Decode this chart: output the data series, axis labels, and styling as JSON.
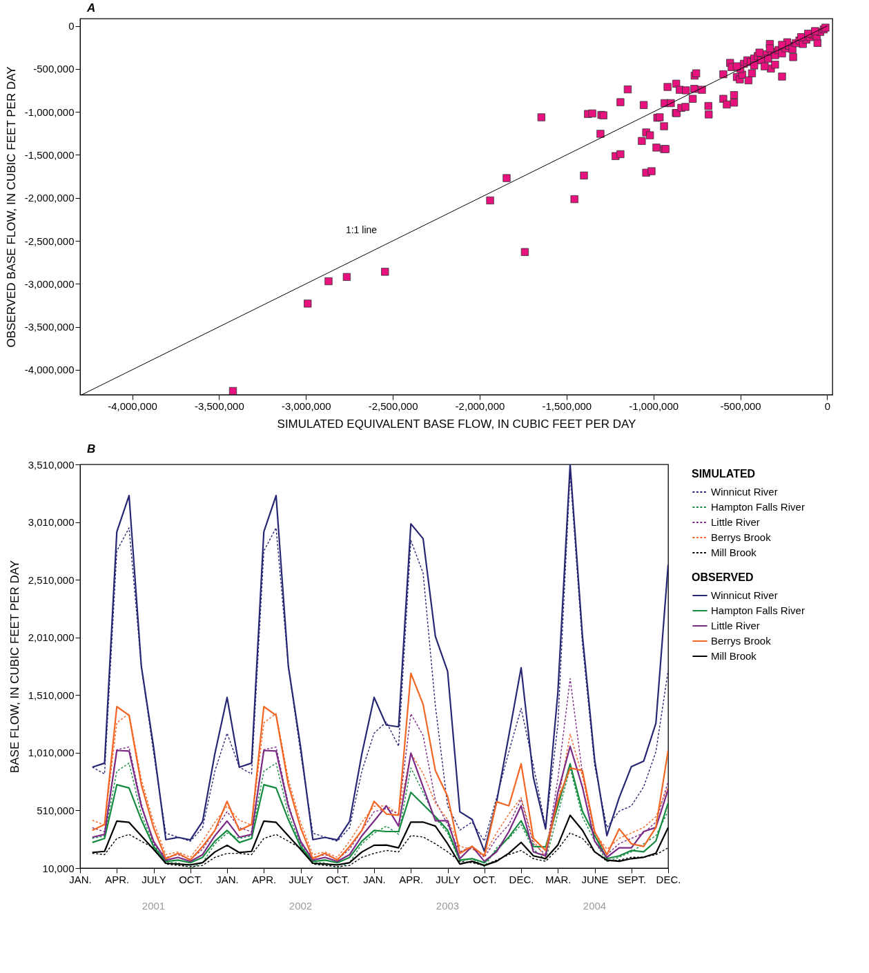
{
  "chart_data": [
    {
      "type": "scatter",
      "title": "A",
      "xlabel": "SIMULATED EQUIVALENT BASE FLOW, IN CUBIC FEET PER DAY",
      "ylabel": "OBSERVED BASE FLOW, IN CUBIC FEET PER DAY",
      "marker": "square",
      "xlim": [
        -4300000,
        30000
      ],
      "xticks": [
        {
          "value": -4000000,
          "label": "-4,000,000"
        },
        {
          "value": -3500000,
          "label": "-3,500,000"
        },
        {
          "value": -3000000,
          "label": "-3,000,000"
        },
        {
          "value": -2500000,
          "label": "-2,500,000"
        },
        {
          "value": -2000000,
          "label": "-2,000,000"
        },
        {
          "value": -1500000,
          "label": "-1,500,000"
        },
        {
          "value": -1000000,
          "label": "-1,000,000"
        },
        {
          "value": -500000,
          "label": "-500,000"
        },
        0
      ],
      "ylim": [
        -4290000,
        85000
      ],
      "yticks": [
        {
          "value": -4000000,
          "label": "-4,000,000"
        },
        {
          "value": -3500000,
          "label": "-3,500,000"
        },
        {
          "value": -3000000,
          "label": "-3,000,000"
        },
        {
          "value": -2500000,
          "label": "-2,500,000"
        },
        {
          "value": -2000000,
          "label": "-2,000,000"
        },
        {
          "value": -1500000,
          "label": "-1,500,000"
        },
        {
          "value": -1000000,
          "label": "-1,000,000"
        },
        {
          "value": -500000,
          "label": "-500,000"
        },
        0
      ],
      "annotations": [
        {
          "text": "1:1 line",
          "x": -2520000,
          "y": -2480000
        }
      ],
      "series": [
        {
          "color": "#e8127f",
          "x": [
            -3420000,
            -2990000,
            -2870000,
            -2765000,
            -2545000,
            -1940000,
            -1845000,
            -1740000,
            -1645000,
            -1455000,
            -1400000,
            -1377000,
            -1352000,
            -1305000,
            -1300000,
            -1288000,
            -1218000,
            -1190000,
            -1190000,
            -1148000,
            -1067000,
            -1056000,
            -1042000,
            -1042000,
            -1020000,
            -1011000,
            -983000,
            -978000,
            -964000,
            -939000,
            -936000,
            -900000,
            -939000,
            -930000,
            -919000,
            -871000,
            -866000,
            -869000,
            -849000,
            -840000,
            -816000,
            -813000,
            -774000,
            -765000,
            -763000,
            -754000,
            -721000,
            -684000,
            -682000,
            -598000,
            -598000,
            -578000,
            -559000,
            -550000,
            -536000,
            -536000,
            -520000,
            -503000,
            -489000,
            -453000,
            -433000,
            -260000,
            -324000,
            -330000,
            -196000,
            -56000,
            -480000,
            -460000,
            -440000,
            -420000,
            -400000,
            -380000,
            -360000,
            -340000,
            -320000,
            -300000,
            -280000,
            -260000,
            -240000,
            -220000,
            -200000,
            -180000,
            -160000,
            -140000,
            -120000,
            -100000,
            -80000,
            -60000,
            -40000,
            -20000,
            -10000,
            -300000,
            -360000,
            -420000,
            -500000,
            -520000,
            -230000,
            -150000,
            -110000,
            -70000,
            -260000,
            -330000,
            -390000
          ],
          "values": [
            -4246000,
            -3230000,
            -2970000,
            -2920000,
            -2860000,
            -2030000,
            -1770000,
            -2630000,
            -1063000,
            -2015000,
            -1740000,
            -1024000,
            -1018000,
            -1255000,
            -1035000,
            -1040000,
            -1514000,
            -1492000,
            -887000,
            -738000,
            -1338000,
            -920000,
            -1239000,
            -1707000,
            -1272000,
            -1690000,
            -1415000,
            -1068000,
            -1063000,
            -1167000,
            -898000,
            -898000,
            -1432000,
            -1432000,
            -710000,
            -1013000,
            -1013000,
            -672000,
            -743000,
            -953000,
            -942000,
            -749000,
            -848000,
            -732000,
            -578000,
            -551000,
            -743000,
            -931000,
            -1030000,
            -562000,
            -848000,
            -914000,
            -430000,
            -479000,
            -804000,
            -892000,
            -595000,
            -622000,
            -567000,
            -633000,
            -551000,
            -589000,
            -496000,
            -209000,
            -363000,
            -198000,
            -440000,
            -400000,
            -420000,
            -380000,
            -350000,
            -400000,
            -330000,
            -380000,
            -300000,
            -340000,
            -280000,
            -320000,
            -260000,
            -230000,
            -270000,
            -200000,
            -170000,
            -210000,
            -160000,
            -130000,
            -100000,
            -120000,
            -70000,
            -40000,
            -20000,
            -450000,
            -470000,
            -460000,
            -500000,
            -470000,
            -190000,
            -130000,
            -90000,
            -60000,
            -220000,
            -260000,
            -310000
          ]
        },
        {
          "type": "line",
          "marker": "none",
          "color": "#000000",
          "x": [
            -4290000,
            0
          ],
          "values": [
            -4290000,
            0
          ]
        }
      ]
    },
    {
      "type": "line",
      "title": "B",
      "ylabel": "BASE FLOW, IN CUBIC FEET PER DAY",
      "legend": "right",
      "categories": [
        "JAN.",
        null,
        null,
        "APR.",
        null,
        null,
        "JULY",
        null,
        null,
        "OCT.",
        null,
        null,
        "JAN.",
        null,
        null,
        "APR.",
        null,
        null,
        "JULY",
        null,
        null,
        "OCT.",
        null,
        null,
        "JAN.",
        null,
        null,
        "APR.",
        null,
        null,
        "JULY",
        null,
        null,
        "OCT.",
        null,
        null,
        "DEC.",
        null,
        null,
        "MAR.",
        null,
        null,
        "JUNE",
        null,
        null,
        "SEPT.",
        null,
        null,
        "DEC."
      ],
      "ylim": [
        10000,
        3510000
      ],
      "yticks": [
        {
          "value": 10000,
          "label": "10,000"
        },
        {
          "value": 510000,
          "label": "510,000"
        },
        {
          "value": 1010000,
          "label": "1,010,000"
        },
        {
          "value": 1510000,
          "label": "1,510,000"
        },
        {
          "value": 2010000,
          "label": "2,010,000"
        },
        {
          "value": 2510000,
          "label": "2,510,000"
        },
        {
          "value": 3010000,
          "label": "3,010,000"
        },
        {
          "value": 3510000,
          "label": "3,510,000"
        }
      ],
      "annotations": [
        "SIMULATED",
        "OBSERVED",
        "2001",
        "2002",
        "2003",
        "2004"
      ],
      "series": [
        {
          "name": "Winnicut River",
          "color": "#262673",
          "line_style": "dashed",
          "values": [
            null,
            885000,
            827000,
            2760000,
            2960000,
            1760000,
            1010000,
            313000,
            278000,
            243000,
            360000,
            850000,
            1180000,
            885000,
            827000,
            2760000,
            2960000,
            1760000,
            1010000,
            313000,
            278000,
            243000,
            360000,
            850000,
            1180000,
            1277000,
            1066000,
            2850000,
            2568000,
            1418000,
            550000,
            339000,
            409000,
            245000,
            620000,
            1019000,
            1395000,
            902000,
            362000,
            1254000,
            3437000,
            1958000,
            902000,
            362000,
            503000,
            550000,
            714000,
            1019000,
            1723000
          ]
        },
        {
          "name": "Hampton Falls River",
          "color": "#138a3e",
          "line_style": "dashed",
          "values": [
            null,
            267000,
            290000,
            850000,
            920000,
            477000,
            220000,
            57000,
            57000,
            10000,
            57000,
            220000,
            313000,
            267000,
            290000,
            850000,
            920000,
            477000,
            220000,
            57000,
            57000,
            10000,
            57000,
            220000,
            313000,
            374000,
            303000,
            878000,
            667000,
            444000,
            315000,
            69000,
            92000,
            22000,
            186000,
            268000,
            386000,
            174000,
            80000,
            479000,
            878000,
            456000,
            245000,
            69000,
            104000,
            151000,
            221000,
            292000,
            503000
          ]
        },
        {
          "name": "Little River",
          "color": "#7a2a85",
          "line_style": "dashed",
          "values": [
            null,
            360000,
            325000,
            1036000,
            1060000,
            570000,
            220000,
            103000,
            127000,
            85000,
            173000,
            337000,
            500000,
            360000,
            325000,
            1036000,
            1060000,
            570000,
            220000,
            103000,
            127000,
            85000,
            173000,
            337000,
            500000,
            526000,
            479000,
            1348000,
            1160000,
            597000,
            386000,
            151000,
            198000,
            104000,
            268000,
            386000,
            608000,
            221000,
            127000,
            784000,
            1653000,
            831000,
            292000,
            127000,
            221000,
            268000,
            315000,
            409000,
            761000
          ]
        },
        {
          "name": "Berrys Brook",
          "color": "#f26522",
          "line_style": "dashed",
          "values": [
            null,
            425000,
            383000,
            1270000,
            1350000,
            780000,
            407000,
            127000,
            150000,
            103000,
            243000,
            407000,
            547000,
            425000,
            383000,
            1270000,
            1350000,
            780000,
            407000,
            127000,
            150000,
            103000,
            243000,
            407000,
            547000,
            550000,
            479000,
            1007000,
            831000,
            573000,
            432000,
            198000,
            174000,
            127000,
            315000,
            479000,
            620000,
            245000,
            104000,
            573000,
            1172000,
            808000,
            315000,
            174000,
            268000,
            315000,
            362000,
            456000,
            714000
          ]
        },
        {
          "name": "Mill Brook",
          "color": "#000000",
          "line_style": "dashed",
          "values": [
            null,
            138000,
            127000,
            267000,
            302000,
            243000,
            185000,
            45000,
            33000,
            22000,
            33000,
            103000,
            138000,
            138000,
            127000,
            267000,
            302000,
            243000,
            185000,
            45000,
            33000,
            22000,
            33000,
            103000,
            138000,
            163000,
            151000,
            292000,
            280000,
            221000,
            151000,
            69000,
            57000,
            33000,
            80000,
            127000,
            163000,
            92000,
            69000,
            174000,
            315000,
            268000,
            151000,
            69000,
            80000,
            104000,
            104000,
            127000,
            186000
          ]
        },
        {
          "name": "Winnicut River",
          "color": "#262673",
          "line_style": "solid",
          "values": [
            null,
            885000,
            920000,
            2926000,
            3240000,
            1760000,
            1060000,
            257000,
            276000,
            255000,
            414000,
            1000000,
            1490000,
            885000,
            920000,
            2926000,
            3240000,
            1760000,
            1060000,
            257000,
            276000,
            255000,
            414000,
            1000000,
            1490000,
            1250000,
            1235000,
            2995000,
            2866000,
            2020000,
            1716000,
            498000,
            432000,
            156000,
            585000,
            1160000,
            1747000,
            796000,
            350000,
            1535000,
            3510000,
            2030000,
            949000,
            292000,
            620000,
            890000,
            937000,
            1266000,
            2640000
          ]
        },
        {
          "name": "Hampton Falls River",
          "color": "#138a3e",
          "line_style": "solid",
          "values": [
            null,
            232000,
            267000,
            733000,
            705000,
            430000,
            197000,
            68000,
            80000,
            57000,
            103000,
            243000,
            337000,
            232000,
            267000,
            733000,
            705000,
            430000,
            197000,
            68000,
            80000,
            57000,
            103000,
            243000,
            337000,
            327000,
            327000,
            667000,
            562000,
            456000,
            339000,
            80000,
            92000,
            57000,
            163000,
            280000,
            421000,
            198000,
            193000,
            550000,
            914000,
            503000,
            292000,
            92000,
            116000,
            163000,
            151000,
            245000,
            573000
          ]
        },
        {
          "name": "Little River",
          "color": "#7a2a85",
          "line_style": "solid",
          "values": [
            null,
            278000,
            302000,
            1030000,
            1025000,
            547000,
            243000,
            80000,
            103000,
            68000,
            127000,
            290000,
            418000,
            278000,
            302000,
            1030000,
            1025000,
            547000,
            243000,
            80000,
            103000,
            68000,
            127000,
            290000,
            418000,
            550000,
            374000,
            1007000,
            714000,
            421000,
            421000,
            92000,
            198000,
            69000,
            151000,
            327000,
            550000,
            151000,
            116000,
            667000,
            1066000,
            714000,
            245000,
            104000,
            186000,
            186000,
            327000,
            362000,
            691000
          ]
        },
        {
          "name": "Berrys Brook",
          "color": "#f26522",
          "line_style": "solid",
          "values": [
            null,
            337000,
            388000,
            1410000,
            1335000,
            733000,
            360000,
            92000,
            138000,
            80000,
            197000,
            337000,
            589000,
            337000,
            388000,
            1410000,
            1335000,
            733000,
            360000,
            92000,
            138000,
            80000,
            197000,
            337000,
            589000,
            479000,
            468000,
            1700000,
            1430000,
            855000,
            632000,
            139000,
            198000,
            116000,
            585000,
            550000,
            914000,
            268000,
            163000,
            597000,
            878000,
            855000,
            327000,
            127000,
            350000,
            221000,
            198000,
            362000,
            1031000
          ]
        },
        {
          "name": "Mill Brook",
          "color": "#000000",
          "line_style": "solid",
          "values": [
            null,
            145000,
            155000,
            418000,
            407000,
            290000,
            173000,
            52000,
            45000,
            38000,
            57000,
            150000,
            208000,
            145000,
            155000,
            418000,
            407000,
            290000,
            173000,
            52000,
            45000,
            38000,
            57000,
            150000,
            208000,
            210000,
            186000,
            409000,
            409000,
            374000,
            221000,
            45000,
            69000,
            33000,
            69000,
            139000,
            233000,
            116000,
            92000,
            210000,
            468000,
            339000,
            151000,
            80000,
            69000,
            92000,
            104000,
            139000,
            362000
          ]
        }
      ]
    }
  ]
}
